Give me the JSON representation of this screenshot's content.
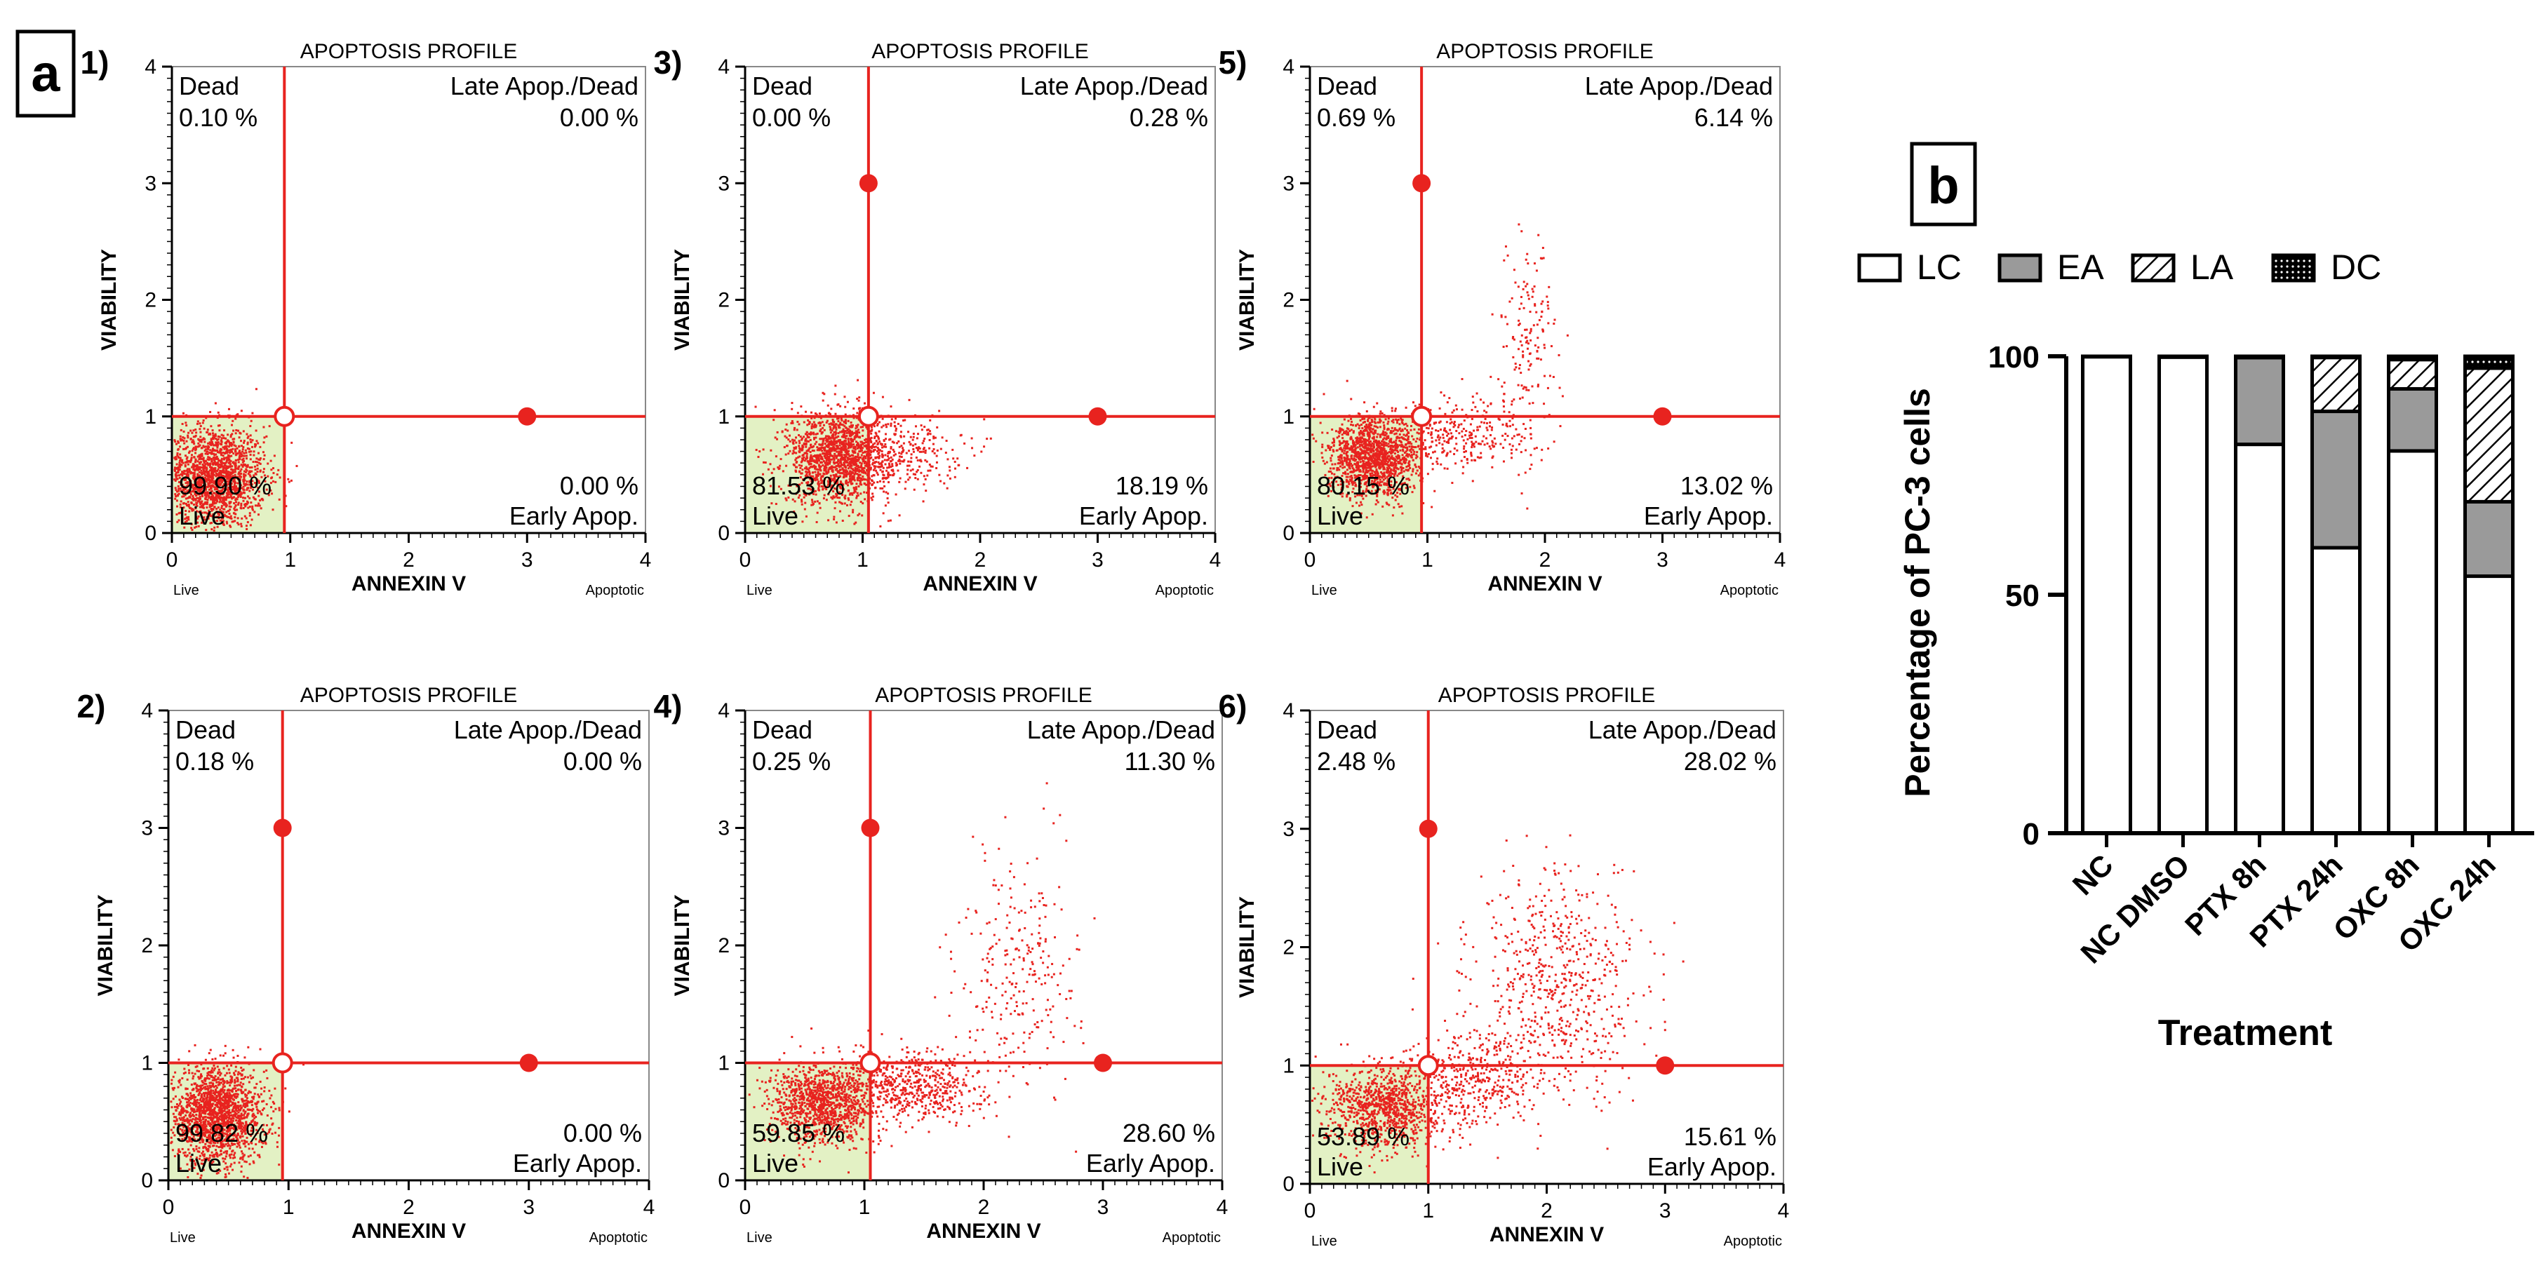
{
  "panel_a_label": "a",
  "panel_b_label": "b",
  "chart_data": [
    {
      "type": "scatter",
      "panel": "1)",
      "title": "APOPTOSIS PROFILE",
      "xlabel": "ANNEXIN V",
      "ylabel": "VIABILITY",
      "x_range": [
        0,
        4
      ],
      "y_range": [
        0,
        4
      ],
      "xticks": [
        0,
        1,
        2,
        3,
        4
      ],
      "yticks": [
        0,
        1,
        2,
        3,
        4
      ],
      "x_end_labels": [
        "Live",
        "Apoptotic"
      ],
      "gate": {
        "x": 0.95,
        "y": 1.0
      },
      "markers": [
        {
          "x": 3.0,
          "y": 1.0
        }
      ],
      "quadrants": {
        "dead": {
          "label": "Dead",
          "value": "0.10 %"
        },
        "late": {
          "label": "Late Apop./Dead",
          "value": "0.00 %"
        },
        "live": {
          "label": "Live",
          "value": "99.90 %"
        },
        "early": {
          "label": "Early Apop.",
          "value": "0.00 %"
        }
      },
      "populations": [
        {
          "n": 1800,
          "cx": 0.35,
          "cy": 0.48,
          "sx": 0.22,
          "sy": 0.22
        }
      ]
    },
    {
      "type": "scatter",
      "panel": "2)",
      "title": "APOPTOSIS PROFILE",
      "xlabel": "ANNEXIN V",
      "ylabel": "VIABILITY",
      "x_range": [
        0,
        4
      ],
      "y_range": [
        0,
        4
      ],
      "xticks": [
        0,
        1,
        2,
        3,
        4
      ],
      "yticks": [
        0,
        1,
        2,
        3,
        4
      ],
      "x_end_labels": [
        "Live",
        "Apoptotic"
      ],
      "gate": {
        "x": 0.95,
        "y": 1.0
      },
      "markers": [
        {
          "x": 0.95,
          "y": 3.0
        },
        {
          "x": 3.0,
          "y": 1.0
        }
      ],
      "quadrants": {
        "dead": {
          "label": "Dead",
          "value": "0.18 %"
        },
        "late": {
          "label": "Late Apop./Dead",
          "value": "0.00 %"
        },
        "live": {
          "label": "Live",
          "value": "99.82 %"
        },
        "early": {
          "label": "Early Apop.",
          "value": "0.00 %"
        }
      },
      "populations": [
        {
          "n": 1800,
          "cx": 0.4,
          "cy": 0.55,
          "sx": 0.2,
          "sy": 0.2
        }
      ]
    },
    {
      "type": "scatter",
      "panel": "3)",
      "title": "APOPTOSIS PROFILE",
      "xlabel": "ANNEXIN V",
      "ylabel": "VIABILITY",
      "x_range": [
        0,
        4
      ],
      "y_range": [
        0,
        4
      ],
      "xticks": [
        0,
        1,
        2,
        3,
        4
      ],
      "yticks": [
        0,
        1,
        2,
        3,
        4
      ],
      "x_end_labels": [
        "Live",
        "Apoptotic"
      ],
      "gate": {
        "x": 1.05,
        "y": 1.0
      },
      "markers": [
        {
          "x": 1.05,
          "y": 3.0
        },
        {
          "x": 3.0,
          "y": 1.0
        }
      ],
      "quadrants": {
        "dead": {
          "label": "Dead",
          "value": "0.00 %"
        },
        "late": {
          "label": "Late Apop./Dead",
          "value": "0.28 %"
        },
        "live": {
          "label": "Live",
          "value": "81.53 %"
        },
        "early": {
          "label": "Early Apop.",
          "value": "18.19 %"
        }
      },
      "populations": [
        {
          "n": 1500,
          "cx": 0.8,
          "cy": 0.65,
          "sx": 0.22,
          "sy": 0.2
        },
        {
          "n": 250,
          "cx": 1.35,
          "cy": 0.7,
          "sx": 0.25,
          "sy": 0.15
        }
      ]
    },
    {
      "type": "scatter",
      "panel": "4)",
      "title": "APOPTOSIS PROFILE",
      "xlabel": "ANNEXIN V",
      "ylabel": "VIABILITY",
      "x_range": [
        0,
        4
      ],
      "y_range": [
        0,
        4
      ],
      "xticks": [
        0,
        1,
        2,
        3,
        4
      ],
      "yticks": [
        0,
        1,
        2,
        3,
        4
      ],
      "x_end_labels": [
        "Live",
        "Apoptotic"
      ],
      "gate": {
        "x": 1.05,
        "y": 1.0
      },
      "markers": [
        {
          "x": 1.05,
          "y": 3.0
        },
        {
          "x": 3.0,
          "y": 1.0
        }
      ],
      "quadrants": {
        "dead": {
          "label": "Dead",
          "value": "0.25 %"
        },
        "late": {
          "label": "Late Apop./Dead",
          "value": "11.30 %"
        },
        "live": {
          "label": "Live",
          "value": "59.85 %"
        },
        "early": {
          "label": "Early Apop.",
          "value": "28.60 %"
        }
      },
      "populations": [
        {
          "n": 1100,
          "cx": 0.65,
          "cy": 0.65,
          "sx": 0.22,
          "sy": 0.17
        },
        {
          "n": 600,
          "cx": 1.4,
          "cy": 0.8,
          "sx": 0.3,
          "sy": 0.15
        },
        {
          "n": 260,
          "cx": 2.3,
          "cy": 1.8,
          "sx": 0.25,
          "sy": 0.5
        }
      ]
    },
    {
      "type": "scatter",
      "panel": "5)",
      "title": "APOPTOSIS PROFILE",
      "xlabel": "ANNEXIN V",
      "ylabel": "VIABILITY",
      "x_range": [
        0,
        4
      ],
      "y_range": [
        0,
        4
      ],
      "xticks": [
        0,
        1,
        2,
        3,
        4
      ],
      "yticks": [
        0,
        1,
        2,
        3,
        4
      ],
      "x_end_labels": [
        "Live",
        "Apoptotic"
      ],
      "gate": {
        "x": 0.95,
        "y": 1.0
      },
      "markers": [
        {
          "x": 0.95,
          "y": 3.0
        },
        {
          "x": 3.0,
          "y": 1.0
        }
      ],
      "quadrants": {
        "dead": {
          "label": "Dead",
          "value": "0.69 %"
        },
        "late": {
          "label": "Late Apop./Dead",
          "value": "6.14 %"
        },
        "live": {
          "label": "Live",
          "value": "80.15 %"
        },
        "early": {
          "label": "Early Apop.",
          "value": "13.02 %"
        }
      },
      "populations": [
        {
          "n": 1400,
          "cx": 0.55,
          "cy": 0.65,
          "sx": 0.2,
          "sy": 0.17
        },
        {
          "n": 300,
          "cx": 1.3,
          "cy": 0.85,
          "sx": 0.3,
          "sy": 0.15
        },
        {
          "n": 160,
          "cx": 1.85,
          "cy": 1.6,
          "sx": 0.12,
          "sy": 0.45
        }
      ]
    },
    {
      "type": "scatter",
      "panel": "6)",
      "title": "APOPTOSIS PROFILE",
      "xlabel": "ANNEXIN V",
      "ylabel": "VIABILITY",
      "x_range": [
        0,
        4
      ],
      "y_range": [
        0,
        4
      ],
      "xticks": [
        0,
        1,
        2,
        3,
        4
      ],
      "yticks": [
        0,
        1,
        2,
        3,
        4
      ],
      "x_end_labels": [
        "Live",
        "Apoptotic"
      ],
      "gate": {
        "x": 1.0,
        "y": 1.0
      },
      "markers": [
        {
          "x": 1.0,
          "y": 3.0
        },
        {
          "x": 3.0,
          "y": 1.0
        }
      ],
      "quadrants": {
        "dead": {
          "label": "Dead",
          "value": "2.48 %"
        },
        "late": {
          "label": "Late Apop./Dead",
          "value": "28.02 %"
        },
        "live": {
          "label": "Live",
          "value": "53.89 %"
        },
        "early": {
          "label": "Early Apop.",
          "value": "15.61 %"
        }
      },
      "populations": [
        {
          "n": 1000,
          "cx": 0.65,
          "cy": 0.65,
          "sx": 0.25,
          "sy": 0.18
        },
        {
          "n": 400,
          "cx": 1.45,
          "cy": 0.9,
          "sx": 0.3,
          "sy": 0.2
        },
        {
          "n": 600,
          "cx": 2.1,
          "cy": 1.7,
          "sx": 0.35,
          "sy": 0.45
        }
      ]
    },
    {
      "type": "bar",
      "stacked": true,
      "panel": "b",
      "xlabel": "Treatment",
      "ylabel": "Percentage of PC-3 cells",
      "ylim": [
        0,
        100
      ],
      "yticks": [
        0,
        50,
        100
      ],
      "categories": [
        "NC",
        "NC DMSO",
        "PTX 8h",
        "PTX 24h",
        "OXC 8h",
        "OXC 24h"
      ],
      "legend": [
        "LC",
        "EA",
        "LA",
        "DC"
      ],
      "series": [
        {
          "name": "LC",
          "values": [
            99.9,
            99.82,
            81.53,
            59.85,
            80.15,
            53.89
          ]
        },
        {
          "name": "EA",
          "values": [
            0.0,
            0.0,
            18.19,
            28.6,
            13.02,
            15.61
          ]
        },
        {
          "name": "LA",
          "values": [
            0.0,
            0.0,
            0.28,
            11.3,
            6.14,
            28.02
          ]
        },
        {
          "name": "DC",
          "values": [
            0.1,
            0.18,
            0.0,
            0.25,
            0.69,
            2.48
          ]
        }
      ]
    }
  ]
}
